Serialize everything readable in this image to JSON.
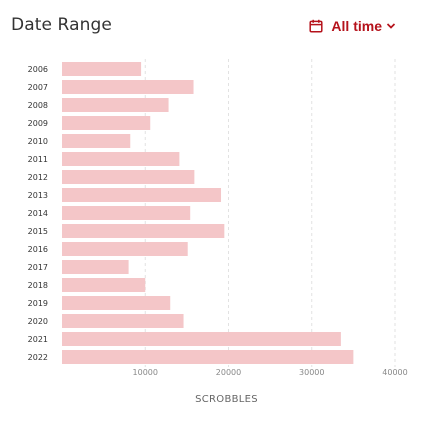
{
  "header": {
    "title": "Date Range",
    "range_label": "All time",
    "accent_color": "#b5121b",
    "calendar_icon": "calendar-icon",
    "chevron_icon": "chevron-down-icon"
  },
  "chart_data": {
    "type": "bar",
    "orientation": "horizontal",
    "categories": [
      "2006",
      "2007",
      "2008",
      "2009",
      "2010",
      "2011",
      "2012",
      "2013",
      "2014",
      "2015",
      "2016",
      "2017",
      "2018",
      "2019",
      "2020",
      "2021",
      "2022"
    ],
    "values": [
      9500,
      15800,
      12800,
      10600,
      8200,
      14100,
      15900,
      19100,
      15400,
      19500,
      15100,
      8000,
      10000,
      13000,
      14600,
      33500,
      35000
    ],
    "xlabel": "SCROBBLES",
    "xticks": [
      10000,
      20000,
      30000,
      40000
    ],
    "xlim": [
      0,
      40000
    ],
    "grid": true,
    "bar_color": "#f4c6c8",
    "grid_color": "#e2e2e2"
  }
}
